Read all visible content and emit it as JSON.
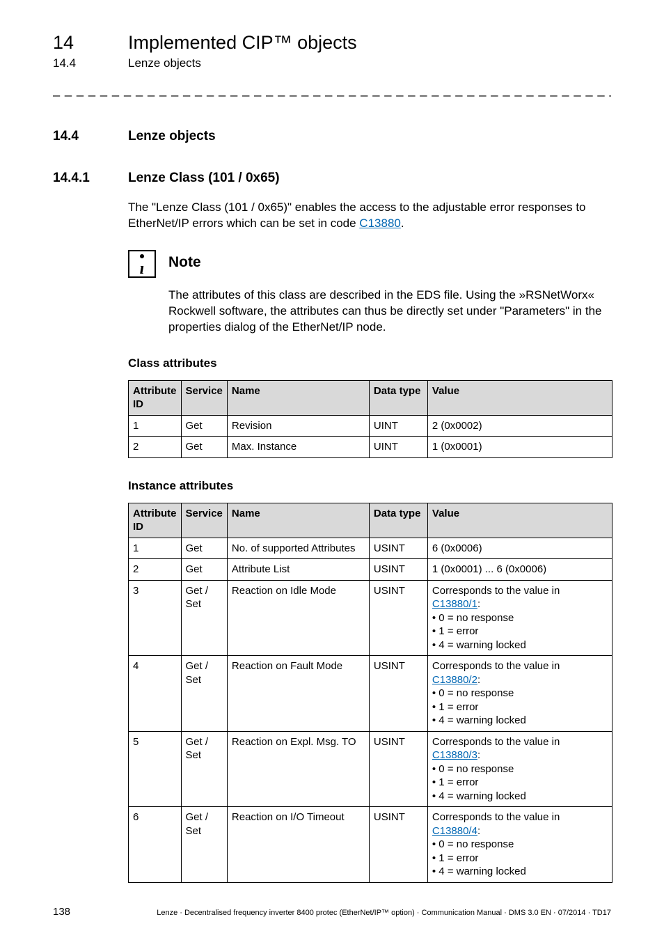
{
  "header": {
    "chapter_num": "14",
    "chapter_title": "Implemented CIP™ objects",
    "section_num": "14.4",
    "section_title": "Lenze objects"
  },
  "dashline": "_ _ _ _ _ _ _ _ _ _ _ _ _ _ _ _ _ _ _ _ _ _ _ _ _ _ _ _ _ _ _ _ _ _ _ _ _ _ _ _ _ _ _ _ _ _ _ _ _ _ _ _ _ _ _ _ _ _ _ _ _ _ _ _",
  "sec144": {
    "num": "14.4",
    "title": "Lenze objects"
  },
  "sec1441": {
    "num": "14.4.1",
    "title": "Lenze Class (101 / 0x65)",
    "intro_a": "The \"Lenze Class (101 /  0x65)\" enables the access to the adjustable error responses to EtherNet/IP errors which can be set in code ",
    "intro_link": "C13880",
    "intro_b": "."
  },
  "note": {
    "title": "Note",
    "body": "The attributes of this class are described in the EDS file. Using the »RSNetWorx« Rockwell software, the attributes can thus be directly set under \"Parameters\" in the properties dialog of the EtherNet/IP node."
  },
  "class_attrs": {
    "title": "Class attributes",
    "headers": [
      "Attribute ID",
      "Service",
      "Name",
      "Data type",
      "Value"
    ],
    "rows": [
      [
        "1",
        "Get",
        "Revision",
        "UINT",
        "2 (0x0002)"
      ],
      [
        "2",
        "Get",
        "Max. Instance",
        "UINT",
        "1 (0x0001)"
      ]
    ]
  },
  "inst_attrs": {
    "title": "Instance attributes",
    "headers": [
      "Attribute ID",
      "Service",
      "Name",
      "Data type",
      "Value"
    ],
    "rows": [
      {
        "c": [
          "1",
          "Get",
          "No. of supported Attributes",
          "USINT",
          "6 (0x0006)"
        ]
      },
      {
        "c": [
          "2",
          "Get",
          "Attribute List",
          "USINT",
          "1 (0x0001) ... 6 (0x0006)"
        ]
      },
      {
        "c": [
          "3",
          "Get / Set",
          "Reaction on Idle Mode",
          "USINT"
        ],
        "val_pre": "Corresponds to the value in ",
        "val_link": "C13880/1",
        "val_post": ":",
        "bullets": [
          "0 = no response",
          "1 = error",
          "4 = warning locked"
        ]
      },
      {
        "c": [
          "4",
          "Get / Set",
          "Reaction on Fault Mode",
          "USINT"
        ],
        "val_pre": "Corresponds to the value in ",
        "val_link": "C13880/2",
        "val_post": ":",
        "bullets": [
          "0 = no response",
          "1 = error",
          "4 = warning locked"
        ]
      },
      {
        "c": [
          "5",
          "Get / Set",
          "Reaction on Expl. Msg. TO",
          "USINT"
        ],
        "val_pre": "Corresponds to the value in ",
        "val_link": "C13880/3",
        "val_post": ":",
        "bullets": [
          "0 = no response",
          "1 = error",
          "4 = warning locked"
        ]
      },
      {
        "c": [
          "6",
          "Get / Set",
          "Reaction on I/O Timeout",
          "USINT"
        ],
        "val_pre": "Corresponds to the value in ",
        "val_link": "C13880/4",
        "val_post": ":",
        "bullets": [
          "0 = no response",
          "1 = error",
          "4 = warning locked"
        ]
      }
    ]
  },
  "footer": {
    "page": "138",
    "text": "Lenze · Decentralised frequency inverter 8400 protec (EtherNet/IP™ option) · Communication Manual · DMS 3.0 EN · 07/2014 · TD17"
  }
}
